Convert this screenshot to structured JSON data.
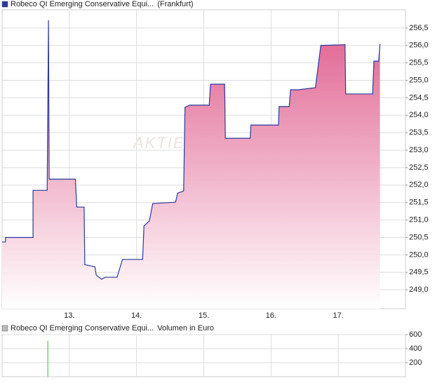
{
  "chart_data": [
    {
      "type": "line",
      "watermark": "AKTIE",
      "series": [
        {
          "name": "Robeco QI Emerging Conservative Equi...",
          "market": "(Frankfurt)",
          "color": "#2b3a9a",
          "x": [
            12.0,
            12.05,
            12.05,
            12.46,
            12.46,
            12.67,
            12.69,
            12.7,
            13.09,
            13.11,
            13.22,
            13.23,
            13.38,
            13.4,
            13.48,
            13.53,
            13.71,
            13.79,
            14.09,
            14.11,
            14.19,
            14.24,
            14.58,
            14.61,
            14.7,
            14.72,
            14.79,
            15.08,
            15.1,
            15.31,
            15.32,
            15.69,
            15.7,
            16.11,
            16.12,
            16.27,
            16.29,
            16.4,
            16.66,
            16.74,
            17.1,
            17.11,
            17.51,
            17.53,
            17.6,
            17.62
          ],
          "values": [
            250.37,
            250.37,
            250.5,
            250.5,
            251.85,
            251.85,
            256.72,
            252.17,
            252.17,
            251.37,
            251.37,
            249.72,
            249.66,
            249.42,
            249.3,
            249.36,
            249.36,
            249.87,
            249.87,
            250.83,
            250.97,
            251.47,
            251.51,
            251.77,
            251.83,
            254.23,
            254.29,
            254.29,
            254.89,
            254.89,
            253.34,
            253.34,
            253.72,
            253.72,
            254.25,
            254.25,
            254.73,
            254.73,
            254.79,
            256.0,
            256.02,
            254.61,
            254.61,
            255.55,
            255.55,
            256.04
          ]
        }
      ],
      "fill_top_color": "#e0608f",
      "xlim": [
        12.0,
        18.0
      ],
      "xticks": [
        {
          "value": 13,
          "label": "13."
        },
        {
          "value": 14,
          "label": "14."
        },
        {
          "value": 15,
          "label": "15."
        },
        {
          "value": 16,
          "label": "16."
        },
        {
          "value": 17,
          "label": "17."
        }
      ],
      "ylim": [
        248.46,
        257.02
      ],
      "yticks": [
        {
          "value": 249.0,
          "label": "249,0"
        },
        {
          "value": 249.5,
          "label": "249,5"
        },
        {
          "value": 250.0,
          "label": "250,0"
        },
        {
          "value": 250.5,
          "label": "250,5"
        },
        {
          "value": 251.0,
          "label": "251,0"
        },
        {
          "value": 251.5,
          "label": "251,5"
        },
        {
          "value": 252.0,
          "label": "252,0"
        },
        {
          "value": 252.5,
          "label": "252,5"
        },
        {
          "value": 253.0,
          "label": "253,0"
        },
        {
          "value": 253.5,
          "label": "253,5"
        },
        {
          "value": 254.0,
          "label": "254,0"
        },
        {
          "value": 254.5,
          "label": "254,5"
        },
        {
          "value": 255.0,
          "label": "255,0"
        },
        {
          "value": 255.5,
          "label": "255,5"
        },
        {
          "value": 256.0,
          "label": "256,0"
        },
        {
          "value": 256.5,
          "label": "256,5"
        }
      ],
      "grid": true
    },
    {
      "type": "bar",
      "series": [
        {
          "name": "Robeco QI Emerging Conservative Equi...",
          "unit": "Volumen in Euro",
          "color": "#33bb33",
          "legend_color": "#bbbbbb",
          "x": [
            12.68
          ],
          "values": [
            510
          ]
        }
      ],
      "xlim": [
        12.0,
        18.0
      ],
      "ylim": [
        0,
        600
      ],
      "yticks": [
        200,
        400,
        600
      ],
      "grid": true
    }
  ]
}
